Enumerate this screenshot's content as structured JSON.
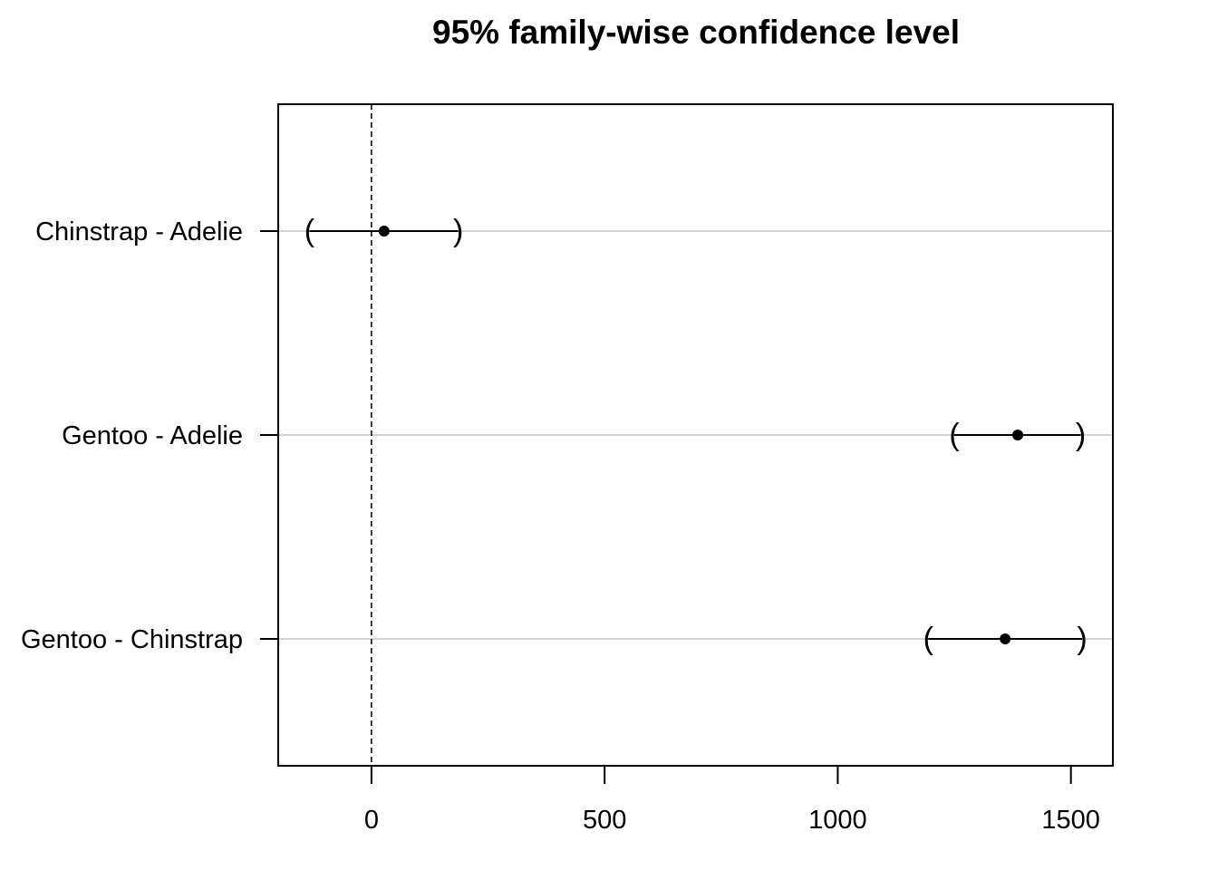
{
  "chart_data": {
    "type": "scatter",
    "subtype": "confidence-interval",
    "title": "95% family-wise confidence level",
    "xlabel": "",
    "ylabel": "",
    "xlim": [
      -200,
      1590
    ],
    "x_ticks": [
      0,
      500,
      1000,
      1500
    ],
    "x_tick_labels": [
      "0",
      "500",
      "1000",
      "1500"
    ],
    "reference_line": 0,
    "grid": "horizontal",
    "categories": [
      "Chinstrap - Adelie",
      "Gentoo - Adelie",
      "Gentoo - Chinstrap"
    ],
    "estimates": [
      27,
      1386,
      1359
    ],
    "lower": [
      -133,
      1250,
      1194
    ],
    "upper": [
      186,
      1521,
      1524
    ],
    "colors": {
      "grid": "#d3d3d3",
      "ink": "#000000"
    }
  }
}
